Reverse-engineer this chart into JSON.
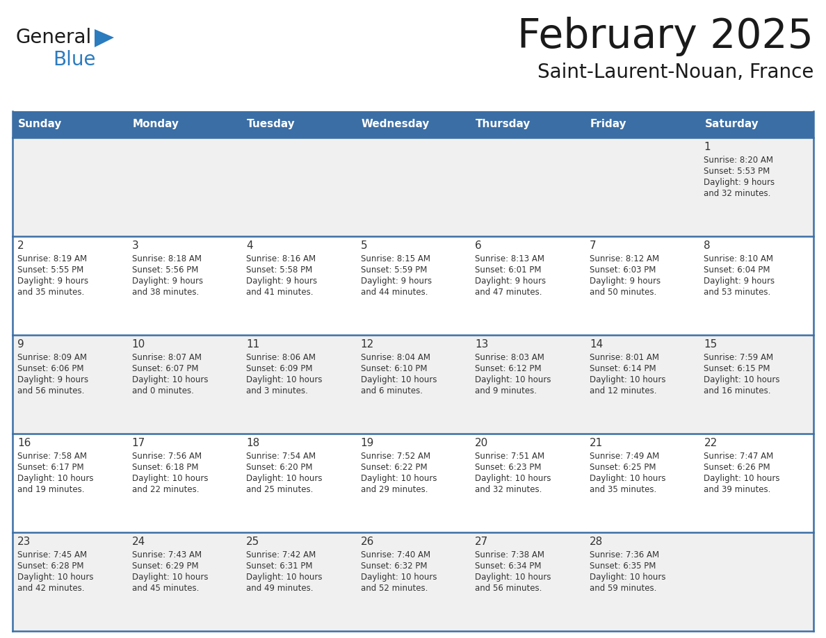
{
  "title": "February 2025",
  "subtitle": "Saint-Laurent-Nouan, France",
  "header_bg": "#3B6EA5",
  "header_text": "#FFFFFF",
  "row_bg_light": "#F0F0F0",
  "row_bg_white": "#FFFFFF",
  "border_color": "#3B6EA5",
  "text_color": "#333333",
  "day_headers": [
    "Sunday",
    "Monday",
    "Tuesday",
    "Wednesday",
    "Thursday",
    "Friday",
    "Saturday"
  ],
  "days": [
    {
      "day": 1,
      "col": 6,
      "row": 0,
      "sunrise": "8:20 AM",
      "sunset": "5:53 PM",
      "daylight_h": "9 hours",
      "daylight_m": "32 minutes"
    },
    {
      "day": 2,
      "col": 0,
      "row": 1,
      "sunrise": "8:19 AM",
      "sunset": "5:55 PM",
      "daylight_h": "9 hours",
      "daylight_m": "35 minutes"
    },
    {
      "day": 3,
      "col": 1,
      "row": 1,
      "sunrise": "8:18 AM",
      "sunset": "5:56 PM",
      "daylight_h": "9 hours",
      "daylight_m": "38 minutes"
    },
    {
      "day": 4,
      "col": 2,
      "row": 1,
      "sunrise": "8:16 AM",
      "sunset": "5:58 PM",
      "daylight_h": "9 hours",
      "daylight_m": "41 minutes"
    },
    {
      "day": 5,
      "col": 3,
      "row": 1,
      "sunrise": "8:15 AM",
      "sunset": "5:59 PM",
      "daylight_h": "9 hours",
      "daylight_m": "44 minutes"
    },
    {
      "day": 6,
      "col": 4,
      "row": 1,
      "sunrise": "8:13 AM",
      "sunset": "6:01 PM",
      "daylight_h": "9 hours",
      "daylight_m": "47 minutes"
    },
    {
      "day": 7,
      "col": 5,
      "row": 1,
      "sunrise": "8:12 AM",
      "sunset": "6:03 PM",
      "daylight_h": "9 hours",
      "daylight_m": "50 minutes"
    },
    {
      "day": 8,
      "col": 6,
      "row": 1,
      "sunrise": "8:10 AM",
      "sunset": "6:04 PM",
      "daylight_h": "9 hours",
      "daylight_m": "53 minutes"
    },
    {
      "day": 9,
      "col": 0,
      "row": 2,
      "sunrise": "8:09 AM",
      "sunset": "6:06 PM",
      "daylight_h": "9 hours",
      "daylight_m": "56 minutes"
    },
    {
      "day": 10,
      "col": 1,
      "row": 2,
      "sunrise": "8:07 AM",
      "sunset": "6:07 PM",
      "daylight_h": "10 hours",
      "daylight_m": "0 minutes"
    },
    {
      "day": 11,
      "col": 2,
      "row": 2,
      "sunrise": "8:06 AM",
      "sunset": "6:09 PM",
      "daylight_h": "10 hours",
      "daylight_m": "3 minutes"
    },
    {
      "day": 12,
      "col": 3,
      "row": 2,
      "sunrise": "8:04 AM",
      "sunset": "6:10 PM",
      "daylight_h": "10 hours",
      "daylight_m": "6 minutes"
    },
    {
      "day": 13,
      "col": 4,
      "row": 2,
      "sunrise": "8:03 AM",
      "sunset": "6:12 PM",
      "daylight_h": "10 hours",
      "daylight_m": "9 minutes"
    },
    {
      "day": 14,
      "col": 5,
      "row": 2,
      "sunrise": "8:01 AM",
      "sunset": "6:14 PM",
      "daylight_h": "10 hours",
      "daylight_m": "12 minutes"
    },
    {
      "day": 15,
      "col": 6,
      "row": 2,
      "sunrise": "7:59 AM",
      "sunset": "6:15 PM",
      "daylight_h": "10 hours",
      "daylight_m": "16 minutes"
    },
    {
      "day": 16,
      "col": 0,
      "row": 3,
      "sunrise": "7:58 AM",
      "sunset": "6:17 PM",
      "daylight_h": "10 hours",
      "daylight_m": "19 minutes"
    },
    {
      "day": 17,
      "col": 1,
      "row": 3,
      "sunrise": "7:56 AM",
      "sunset": "6:18 PM",
      "daylight_h": "10 hours",
      "daylight_m": "22 minutes"
    },
    {
      "day": 18,
      "col": 2,
      "row": 3,
      "sunrise": "7:54 AM",
      "sunset": "6:20 PM",
      "daylight_h": "10 hours",
      "daylight_m": "25 minutes"
    },
    {
      "day": 19,
      "col": 3,
      "row": 3,
      "sunrise": "7:52 AM",
      "sunset": "6:22 PM",
      "daylight_h": "10 hours",
      "daylight_m": "29 minutes"
    },
    {
      "day": 20,
      "col": 4,
      "row": 3,
      "sunrise": "7:51 AM",
      "sunset": "6:23 PM",
      "daylight_h": "10 hours",
      "daylight_m": "32 minutes"
    },
    {
      "day": 21,
      "col": 5,
      "row": 3,
      "sunrise": "7:49 AM",
      "sunset": "6:25 PM",
      "daylight_h": "10 hours",
      "daylight_m": "35 minutes"
    },
    {
      "day": 22,
      "col": 6,
      "row": 3,
      "sunrise": "7:47 AM",
      "sunset": "6:26 PM",
      "daylight_h": "10 hours",
      "daylight_m": "39 minutes"
    },
    {
      "day": 23,
      "col": 0,
      "row": 4,
      "sunrise": "7:45 AM",
      "sunset": "6:28 PM",
      "daylight_h": "10 hours",
      "daylight_m": "42 minutes"
    },
    {
      "day": 24,
      "col": 1,
      "row": 4,
      "sunrise": "7:43 AM",
      "sunset": "6:29 PM",
      "daylight_h": "10 hours",
      "daylight_m": "45 minutes"
    },
    {
      "day": 25,
      "col": 2,
      "row": 4,
      "sunrise": "7:42 AM",
      "sunset": "6:31 PM",
      "daylight_h": "10 hours",
      "daylight_m": "49 minutes"
    },
    {
      "day": 26,
      "col": 3,
      "row": 4,
      "sunrise": "7:40 AM",
      "sunset": "6:32 PM",
      "daylight_h": "10 hours",
      "daylight_m": "52 minutes"
    },
    {
      "day": 27,
      "col": 4,
      "row": 4,
      "sunrise": "7:38 AM",
      "sunset": "6:34 PM",
      "daylight_h": "10 hours",
      "daylight_m": "56 minutes"
    },
    {
      "day": 28,
      "col": 5,
      "row": 4,
      "sunrise": "7:36 AM",
      "sunset": "6:35 PM",
      "daylight_h": "10 hours",
      "daylight_m": "59 minutes"
    }
  ],
  "logo_general_color": "#1a1a1a",
  "logo_blue_color": "#2B7BBF",
  "logo_triangle_color": "#2B7BBF",
  "fig_width": 11.88,
  "fig_height": 9.18,
  "dpi": 100
}
